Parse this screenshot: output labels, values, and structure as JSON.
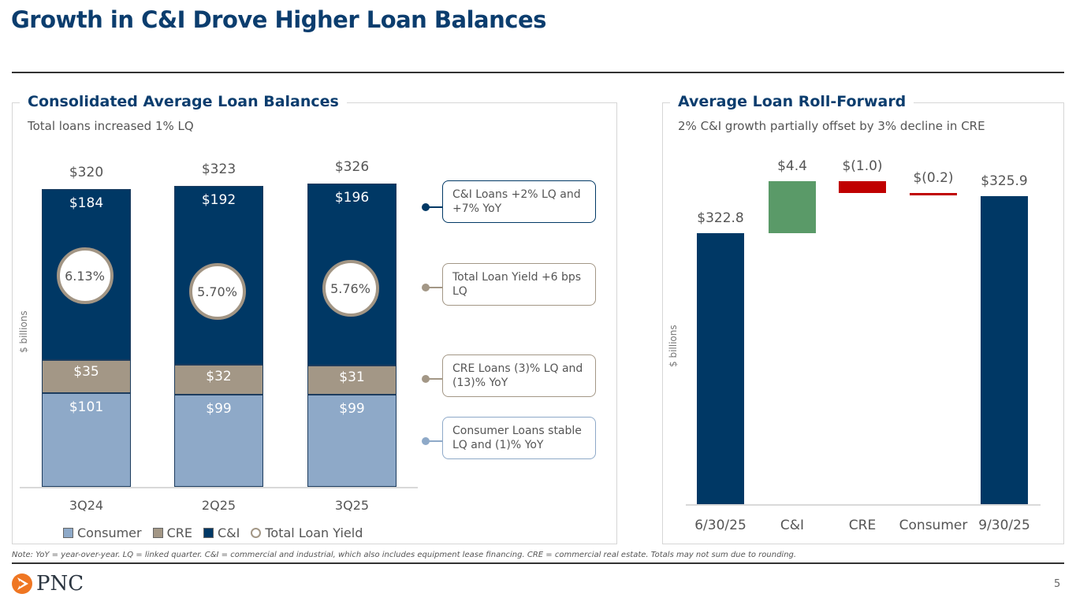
{
  "title": "Growth in C&I Drove Higher Loan Balances",
  "page_number": "5",
  "note": "Note: YoY = year-over-year. LQ = linked quarter. C&I = commercial and industrial, which also includes equipment lease financing. CRE = commercial real estate. Totals may not sum due to rounding.",
  "logo_text": "PNC",
  "colors": {
    "navy": "#003865",
    "cre": "#a39786",
    "consumer": "#8ea9c8",
    "green": "#5a9a68",
    "red": "#c00000"
  },
  "left": {
    "title": "Consolidated Average Loan Balances",
    "subtitle": "Total loans increased 1% LQ"
  },
  "right": {
    "title": "Average Loan Roll-Forward",
    "subtitle": "2% C&I growth partially offset by 3% decline in CRE"
  },
  "callouts": [
    {
      "text": "C&I Loans +2% LQ and +7% YoY"
    },
    {
      "text": "Total Loan Yield +6 bps LQ"
    },
    {
      "text": "CRE Loans (3)% LQ and (13)% YoY"
    },
    {
      "text": "Consumer Loans stable LQ and (1)% YoY"
    }
  ],
  "chart_data": [
    {
      "type": "bar",
      "stacked": true,
      "title": "Consolidated Average Loan Balances",
      "ylabel": "$ billions",
      "ylim": [
        0,
        330
      ],
      "categories": [
        "3Q24",
        "2Q25",
        "3Q25"
      ],
      "series": [
        {
          "name": "Consumer",
          "values": [
            101,
            99,
            99
          ],
          "labels": [
            "$101",
            "$99",
            "$99"
          ]
        },
        {
          "name": "CRE",
          "values": [
            35,
            32,
            31
          ],
          "labels": [
            "$35",
            "$32",
            "$31"
          ]
        },
        {
          "name": "C&I",
          "values": [
            184,
            192,
            196
          ],
          "labels": [
            "$184",
            "$192",
            "$196"
          ]
        }
      ],
      "totals": [
        "$320",
        "$323",
        "$326"
      ],
      "total_values": [
        320,
        323,
        326
      ],
      "yield": {
        "name": "Total Loan Yield",
        "labels": [
          "6.13%",
          "5.70%",
          "5.76%"
        ],
        "values": [
          6.13,
          5.7,
          5.76
        ]
      },
      "legend": [
        "Consumer",
        "CRE",
        "C&I",
        "Total Loan Yield"
      ],
      "legend_position": "bottom"
    },
    {
      "type": "bar",
      "waterfall": true,
      "title": "Average Loan Roll-Forward",
      "ylabel": "$ billions",
      "ylim": [
        300,
        327
      ],
      "categories": [
        "6/30/25",
        "C&I",
        "CRE",
        "Consumer",
        "9/30/25"
      ],
      "values": [
        322.8,
        4.4,
        -1.0,
        -0.2,
        325.9
      ],
      "labels": [
        "$322.8",
        "$4.4",
        "$(1.0)",
        "$(0.2)",
        "$325.9"
      ],
      "kinds": [
        "total",
        "delta",
        "delta",
        "delta",
        "total"
      ]
    }
  ]
}
